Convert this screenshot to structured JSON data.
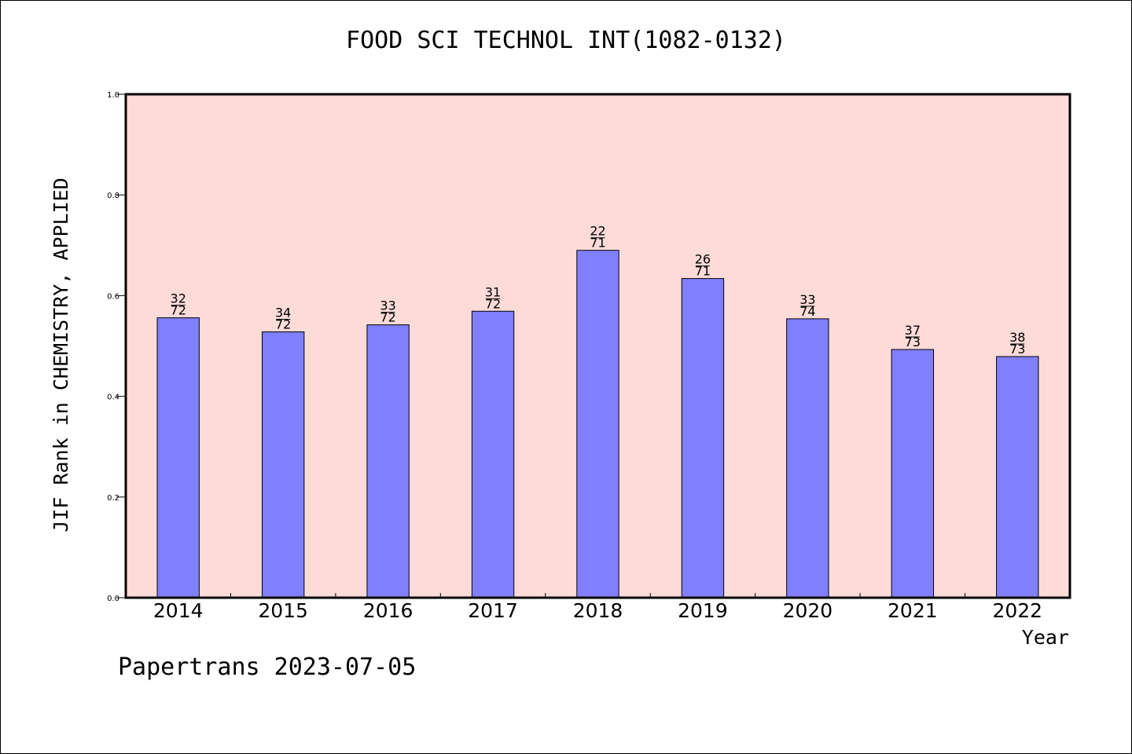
{
  "chart_data": {
    "type": "bar",
    "title": "FOOD SCI TECHNOL INT(1082-0132)",
    "xlabel": "Year",
    "ylabel": "JIF Rank in CHEMISTRY, APPLIED",
    "ylim": [
      0,
      1.0
    ],
    "yticks": [
      "0.0",
      "0.2",
      "0.4",
      "0.6",
      "0.8",
      "1.0"
    ],
    "categories": [
      "2014",
      "2015",
      "2016",
      "2017",
      "2018",
      "2019",
      "2020",
      "2021",
      "2022"
    ],
    "values": [
      0.556,
      0.528,
      0.542,
      0.569,
      0.69,
      0.634,
      0.554,
      0.493,
      0.479
    ],
    "labels": [
      {
        "top": "32",
        "bottom": "72"
      },
      {
        "top": "34",
        "bottom": "72"
      },
      {
        "top": "33",
        "bottom": "72"
      },
      {
        "top": "31",
        "bottom": "72"
      },
      {
        "top": "22",
        "bottom": "71"
      },
      {
        "top": "26",
        "bottom": "71"
      },
      {
        "top": "33",
        "bottom": "74"
      },
      {
        "top": "37",
        "bottom": "73"
      },
      {
        "top": "38",
        "bottom": "73"
      }
    ],
    "grid": false,
    "colors": {
      "plot_background": "#fddbd8",
      "bar_fill": "#8080ff",
      "bar_stroke": "#000000"
    }
  },
  "footer": "Papertrans 2023-07-05"
}
